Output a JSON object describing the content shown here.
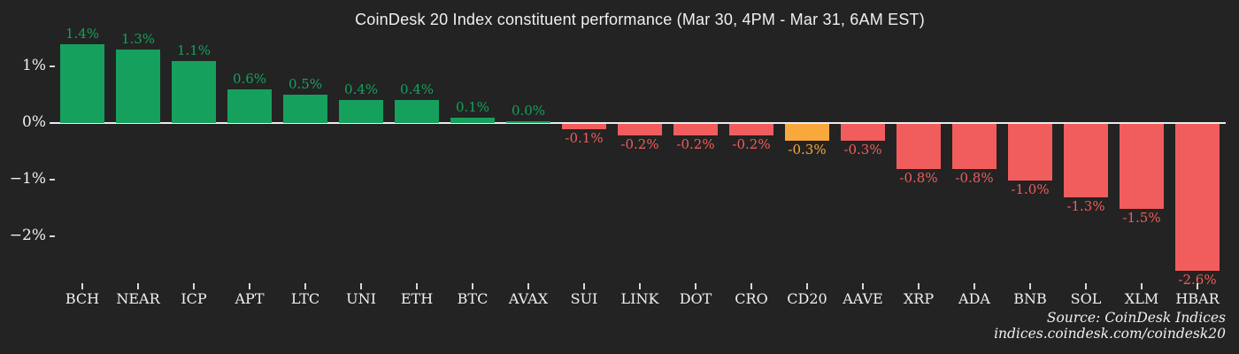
{
  "title": "CoinDesk 20 Index constituent performance (Mar 30, 4PM - Mar 31, 6AM EST)",
  "source": {
    "line1": "Source: CoinDesk Indices",
    "line2": "indices.coindesk.com/coindesk20"
  },
  "colors": {
    "background": "#232323",
    "positive": "#16a05d",
    "negative": "#f15d5c",
    "highlight": "#f9a93c",
    "axis_line": "#ebebeb",
    "tick_mark": "#d8d8d8",
    "text": "#f0f0f0"
  },
  "chart_data": {
    "type": "bar",
    "title": "CoinDesk 20 Index constituent performance (Mar 30, 4PM - Mar 31, 6AM EST)",
    "xlabel": "",
    "ylabel": "",
    "categories": [
      "BCH",
      "NEAR",
      "ICP",
      "APT",
      "LTC",
      "UNI",
      "ETH",
      "BTC",
      "AVAX",
      "SUI",
      "LINK",
      "DOT",
      "CRO",
      "CD20",
      "AAVE",
      "XRP",
      "ADA",
      "BNB",
      "SOL",
      "XLM",
      "HBAR"
    ],
    "values": [
      1.4,
      1.3,
      1.1,
      0.6,
      0.5,
      0.4,
      0.4,
      0.1,
      0.0,
      -0.1,
      -0.2,
      -0.2,
      -0.2,
      -0.3,
      -0.3,
      -0.8,
      -0.8,
      -1.0,
      -1.3,
      -1.5,
      -2.6
    ],
    "value_labels": [
      "1.4%",
      "1.3%",
      "1.1%",
      "0.6%",
      "0.5%",
      "0.4%",
      "0.4%",
      "0.1%",
      "0.0%",
      "-0.1%",
      "-0.2%",
      "-0.2%",
      "-0.2%",
      "-0.3%",
      "-0.3%",
      "-0.8%",
      "-0.8%",
      "-1.0%",
      "-1.3%",
      "-1.5%",
      "-2.6%"
    ],
    "highlight_category": "CD20",
    "ytick_labels": [
      "1%",
      "0%",
      "−1%",
      "−2%"
    ],
    "ytick_values": [
      1,
      0,
      -1,
      -2
    ],
    "ylim": [
      -2.95,
      1.55
    ],
    "grid": false,
    "legend": false,
    "bar_color_rule": "green if positive, red if negative, orange for CD20 index bar"
  }
}
